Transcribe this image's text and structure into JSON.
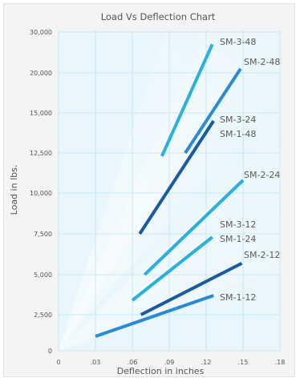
{
  "chart_data": {
    "type": "line",
    "title": "Load Vs Deflection Chart",
    "xlabel": "Deflection in inches",
    "ylabel": "Load in lbs.",
    "xlim": [
      0,
      0.18
    ],
    "ylim": [
      0,
      30000
    ],
    "grid": true,
    "x_ticks": [
      "0",
      ".03",
      ".06",
      ".09",
      ".12",
      ".15",
      ".18"
    ],
    "y_ticks": [
      "0",
      "2,500",
      "5,000",
      "7,500",
      "10,000",
      "12,500",
      "15,000",
      "20,000",
      "30,000"
    ],
    "series": [
      {
        "name": "SM-3-48",
        "color": "#2ab0da",
        "x": [
          0.084,
          0.125
        ],
        "y": [
          12300,
          27000
        ]
      },
      {
        "name": "SM-2-48",
        "color": "#2a8ad6",
        "x": [
          0.103,
          0.148
        ],
        "y": [
          12500,
          21000
        ]
      },
      {
        "name": "SM-3-24",
        "color": "#1a5aa0",
        "x": [
          0.066,
          0.126
        ],
        "y": [
          7500,
          14500
        ]
      },
      {
        "name": "SM-1-48",
        "color": "#1a5aa0",
        "x": [],
        "y": []
      },
      {
        "name": "SM-2-24",
        "color": "#2ab0da",
        "x": [
          0.07,
          0.15
        ],
        "y": [
          5000,
          10800
        ]
      },
      {
        "name": "SM-3-12",
        "color": "#2ab0da",
        "x": [
          0.06,
          0.125
        ],
        "y": [
          3400,
          7300
        ]
      },
      {
        "name": "SM-1-24",
        "color": "#2ab0da",
        "x": [],
        "y": []
      },
      {
        "name": "SM-2-12",
        "color": "#1a5aa0",
        "x": [
          0.067,
          0.149
        ],
        "y": [
          2500,
          5700
        ]
      },
      {
        "name": "SM-1-12",
        "color": "#2a8ad6",
        "x": [
          0.03,
          0.126
        ],
        "y": [
          1000,
          3700
        ]
      }
    ]
  }
}
